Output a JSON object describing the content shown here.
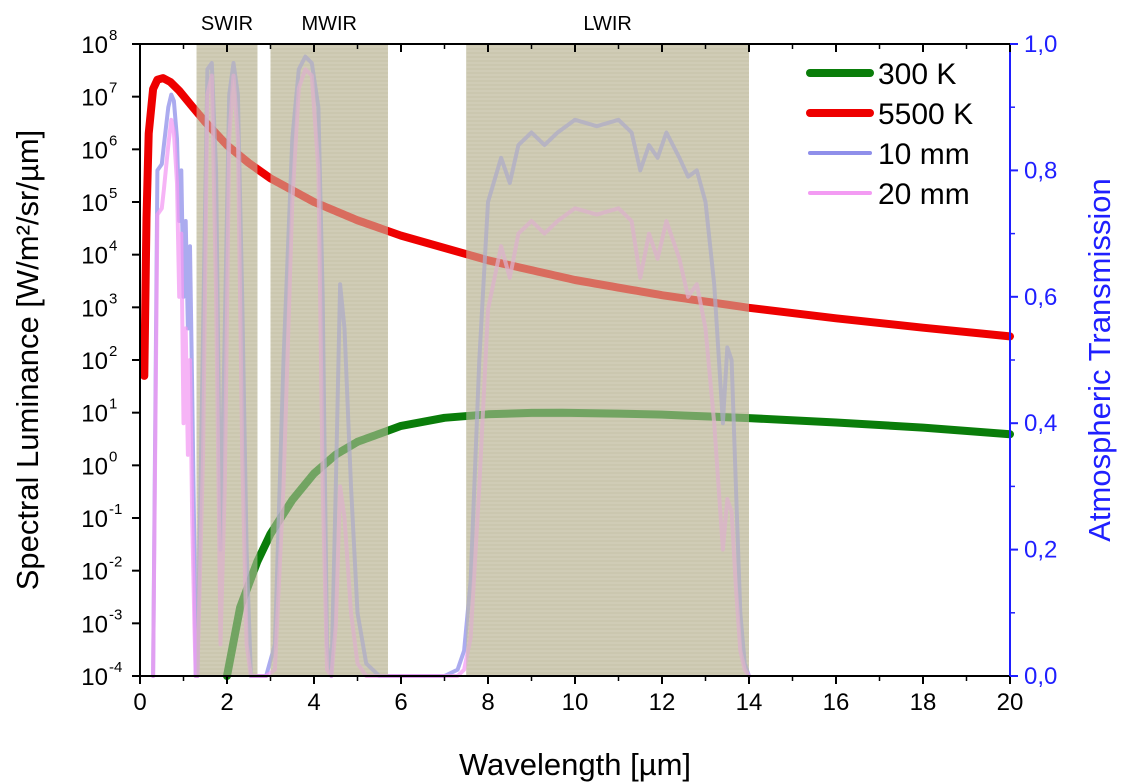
{
  "chart_data": {
    "type": "line",
    "xlabel": "Wavelength [µm]",
    "ylabel": "Spectral Luminance [W/m²/sr/µm]",
    "y2label": "Atmospheric Transmission",
    "xlim": [
      0,
      20
    ],
    "ylim_log10": [
      -4,
      8
    ],
    "y2lim": [
      0,
      1
    ],
    "yscale": "log",
    "x_ticks": [
      "0",
      "2",
      "4",
      "6",
      "8",
      "10",
      "12",
      "14",
      "16",
      "18",
      "20"
    ],
    "x_tick_values": [
      0,
      2,
      4,
      6,
      8,
      10,
      12,
      14,
      16,
      18,
      20
    ],
    "y_ticks": [
      {
        "exp": -4,
        "base": "10",
        "sup": "-4"
      },
      {
        "exp": -3,
        "base": "10",
        "sup": "-3"
      },
      {
        "exp": -2,
        "base": "10",
        "sup": "-2"
      },
      {
        "exp": -1,
        "base": "10",
        "sup": "-1"
      },
      {
        "exp": 0,
        "base": "10",
        "sup": "0"
      },
      {
        "exp": 1,
        "base": "10",
        "sup": "1"
      },
      {
        "exp": 2,
        "base": "10",
        "sup": "2"
      },
      {
        "exp": 3,
        "base": "10",
        "sup": "3"
      },
      {
        "exp": 4,
        "base": "10",
        "sup": "4"
      },
      {
        "exp": 5,
        "base": "10",
        "sup": "5"
      },
      {
        "exp": 6,
        "base": "10",
        "sup": "6"
      },
      {
        "exp": 7,
        "base": "10",
        "sup": "7"
      },
      {
        "exp": 8,
        "base": "10",
        "sup": "8"
      }
    ],
    "y2_ticks": [
      "0,0",
      "0,2",
      "0,4",
      "0,6",
      "0,8",
      "1,0"
    ],
    "y2_tick_values": [
      0,
      0.2,
      0.4,
      0.6,
      0.8,
      1.0
    ],
    "bands": [
      {
        "name": "SWIR",
        "x0": 1.3,
        "x1": 2.7
      },
      {
        "name": "MWIR",
        "x0": 3.0,
        "x1": 5.7
      },
      {
        "name": "LWIR",
        "x0": 7.5,
        "x1": 14.0
      }
    ],
    "band_color": "#cfcbb4",
    "legend_position": "top-right",
    "series": [
      {
        "name": "300 K",
        "axis": "left",
        "color": "#0a7d0a",
        "x": [
          2.0,
          2.3,
          2.7,
          3.0,
          3.5,
          4.0,
          4.5,
          5.0,
          6.0,
          7.0,
          8.0,
          9.0,
          9.7,
          11.0,
          12.0,
          13.0,
          14.0,
          16.0,
          18.0,
          20.0
        ],
        "y": [
          0.0001,
          0.002,
          0.015,
          0.05,
          0.22,
          0.7,
          1.6,
          2.8,
          5.6,
          8.0,
          9.3,
          9.9,
          10.0,
          9.6,
          9.2,
          8.5,
          7.9,
          6.5,
          5.2,
          3.9
        ]
      },
      {
        "name": "5500 K",
        "axis": "left",
        "color": "#ee0000",
        "x": [
          0.1,
          0.15,
          0.2,
          0.3,
          0.4,
          0.53,
          0.7,
          0.9,
          1.2,
          1.5,
          2.0,
          2.5,
          3.0,
          4.0,
          5.0,
          6.0,
          8.0,
          10.0,
          12.0,
          14.0,
          16.0,
          18.0,
          20.0
        ],
        "y": [
          50,
          50000.0,
          2000000.0,
          14000000.0,
          21000000.0,
          22500000.0,
          19000000.0,
          13000000.0,
          6500000.0,
          3300000.0,
          1200000.0,
          550000.0,
          280000.0,
          100000.0,
          45000.0,
          23000.0,
          7800.0,
          3300.0,
          1700.0,
          980.0,
          620.0,
          410.0,
          280.0
        ]
      },
      {
        "name": "10 mm",
        "axis": "right",
        "color": "#8f8fea",
        "x": [
          0.3,
          0.4,
          0.5,
          0.55,
          0.65,
          0.72,
          0.78,
          0.85,
          0.9,
          0.95,
          1.0,
          1.05,
          1.1,
          1.15,
          1.2,
          1.25,
          1.28,
          1.32,
          1.45,
          1.55,
          1.65,
          1.75,
          1.85,
          1.95,
          2.05,
          2.15,
          2.25,
          2.35,
          2.45,
          2.55,
          2.65,
          2.75,
          2.9,
          3.1,
          3.3,
          3.5,
          3.65,
          3.8,
          3.95,
          4.1,
          4.2,
          4.3,
          4.4,
          4.5,
          4.6,
          4.7,
          4.85,
          5.0,
          5.2,
          5.5,
          5.7,
          6.0,
          7.0,
          7.3,
          7.45,
          7.6,
          7.8,
          8.0,
          8.3,
          8.5,
          8.7,
          9.0,
          9.3,
          9.6,
          10.0,
          10.5,
          11.0,
          11.3,
          11.5,
          11.7,
          11.9,
          12.1,
          12.4,
          12.6,
          12.8,
          13.0,
          13.2,
          13.4,
          13.5,
          13.6,
          13.7,
          13.8,
          13.9,
          14.0
        ],
        "y": [
          0.0,
          0.8,
          0.81,
          0.84,
          0.9,
          0.92,
          0.91,
          0.85,
          0.72,
          0.8,
          0.6,
          0.72,
          0.55,
          0.68,
          0.45,
          0.2,
          0.0,
          0.0,
          0.55,
          0.96,
          0.97,
          0.8,
          0.2,
          0.55,
          0.92,
          0.97,
          0.92,
          0.6,
          0.2,
          0.0,
          0.0,
          0.0,
          0.0,
          0.05,
          0.5,
          0.85,
          0.96,
          0.98,
          0.97,
          0.9,
          0.6,
          0.05,
          0.0,
          0.3,
          0.62,
          0.55,
          0.3,
          0.1,
          0.02,
          0.0,
          0.0,
          0.0,
          0.0,
          0.01,
          0.04,
          0.15,
          0.5,
          0.75,
          0.82,
          0.78,
          0.84,
          0.86,
          0.84,
          0.86,
          0.88,
          0.87,
          0.88,
          0.86,
          0.8,
          0.84,
          0.82,
          0.86,
          0.82,
          0.79,
          0.8,
          0.75,
          0.62,
          0.4,
          0.52,
          0.5,
          0.3,
          0.1,
          0.02,
          0.0
        ]
      },
      {
        "name": "20 mm",
        "axis": "right",
        "color": "#f39bf3",
        "x": [
          0.3,
          0.4,
          0.5,
          0.55,
          0.65,
          0.72,
          0.78,
          0.85,
          0.9,
          0.95,
          1.0,
          1.05,
          1.1,
          1.15,
          1.2,
          1.25,
          1.28,
          1.32,
          1.45,
          1.55,
          1.65,
          1.75,
          1.85,
          1.95,
          2.05,
          2.15,
          2.25,
          2.35,
          2.45,
          2.55,
          2.65,
          2.75,
          2.9,
          3.1,
          3.3,
          3.5,
          3.65,
          3.8,
          3.95,
          4.1,
          4.2,
          4.3,
          4.4,
          4.5,
          4.6,
          4.7,
          4.85,
          5.0,
          5.2,
          5.5,
          5.7,
          6.0,
          7.0,
          7.3,
          7.45,
          7.6,
          7.8,
          8.0,
          8.3,
          8.5,
          8.7,
          9.0,
          9.3,
          9.6,
          10.0,
          10.5,
          11.0,
          11.3,
          11.5,
          11.7,
          11.9,
          12.1,
          12.4,
          12.6,
          12.8,
          13.0,
          13.2,
          13.4,
          13.5,
          13.6,
          13.7,
          13.8,
          13.9,
          14.0
        ],
        "y": [
          0.0,
          0.73,
          0.74,
          0.77,
          0.84,
          0.88,
          0.86,
          0.78,
          0.6,
          0.7,
          0.4,
          0.55,
          0.35,
          0.5,
          0.25,
          0.08,
          0.0,
          0.0,
          0.35,
          0.92,
          0.95,
          0.6,
          0.05,
          0.3,
          0.85,
          0.95,
          0.85,
          0.35,
          0.05,
          0.0,
          0.0,
          0.0,
          0.0,
          0.01,
          0.3,
          0.75,
          0.93,
          0.96,
          0.95,
          0.8,
          0.3,
          0.01,
          0.0,
          0.08,
          0.3,
          0.25,
          0.1,
          0.02,
          0.0,
          0.0,
          0.0,
          0.0,
          0.0,
          0.0,
          0.01,
          0.06,
          0.3,
          0.58,
          0.68,
          0.63,
          0.7,
          0.72,
          0.7,
          0.72,
          0.74,
          0.73,
          0.74,
          0.72,
          0.63,
          0.7,
          0.66,
          0.72,
          0.66,
          0.6,
          0.62,
          0.55,
          0.4,
          0.2,
          0.28,
          0.26,
          0.14,
          0.04,
          0.01,
          0.0
        ]
      }
    ]
  }
}
